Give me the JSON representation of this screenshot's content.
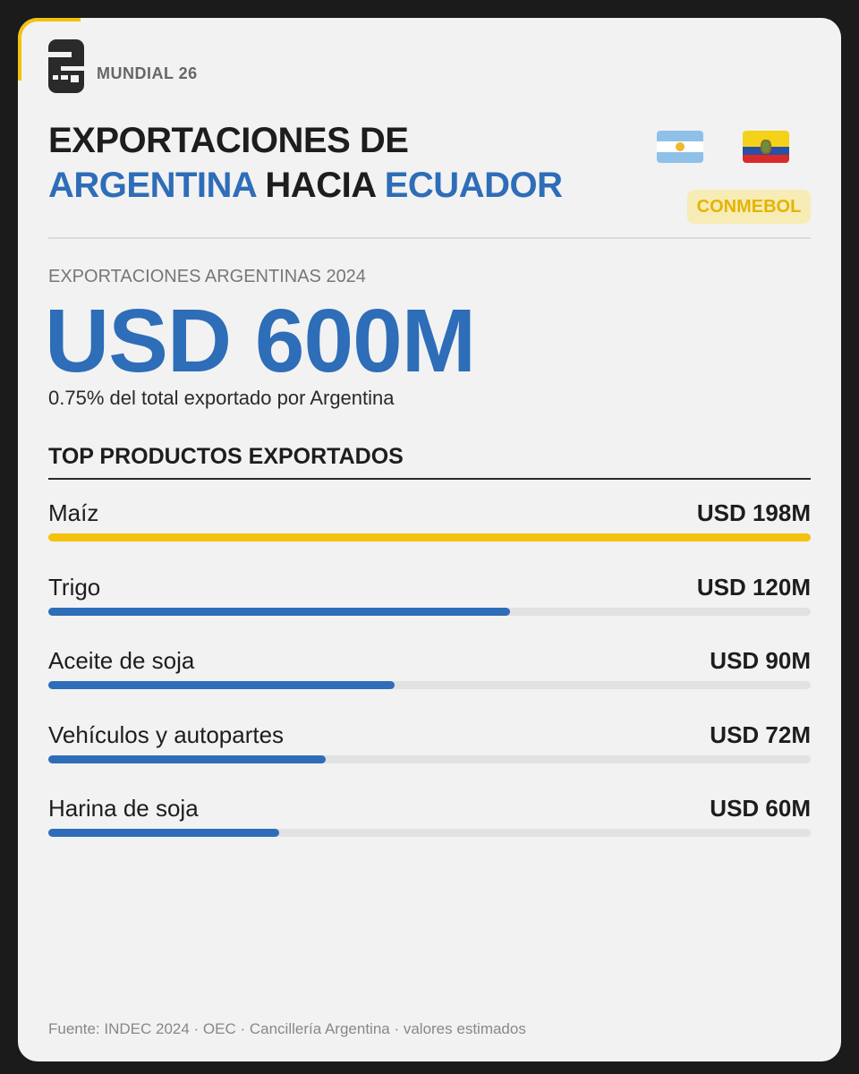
{
  "brand": {
    "name": "MUNDIAL 26"
  },
  "title": {
    "line1": "EXPORTACIONES DE",
    "country_from": "ARGENTINA",
    "connector": "HACIA",
    "country_to": "ECUADOR"
  },
  "flags": [
    "argentina-flag",
    "ecuador-flag"
  ],
  "badge": "CONMEBOL",
  "kpi": {
    "label": "EXPORTACIONES ARGENTINAS 2024",
    "value": "USD 600M",
    "subtitle": "0.75% del total exportado por Argentina"
  },
  "section_title": "TOP PRODUCTOS EXPORTADOS",
  "colors": {
    "accent_yellow": "#f4c20d",
    "bar_blue": "#2e6db8",
    "track_gray": "#e2e2e2",
    "title_blue": "#2e6db8"
  },
  "chart_data": {
    "type": "bar",
    "orientation": "horizontal",
    "title": "TOP PRODUCTOS EXPORTADOS",
    "categories": [
      "Maíz",
      "Trigo",
      "Aceite de soja",
      "Vehículos y autopartes",
      "Harina de soja"
    ],
    "values": [
      198,
      120,
      90,
      72,
      60
    ],
    "value_labels": [
      "USD 198M",
      "USD 120M",
      "USD 90M",
      "USD 72M",
      "USD 60M"
    ],
    "unit": "USD M",
    "xlim": [
      0,
      198
    ],
    "highlight_index": 0,
    "grid": false
  },
  "source": "Fuente: INDEC 2024 · OEC · Cancillería Argentina · valores estimados"
}
